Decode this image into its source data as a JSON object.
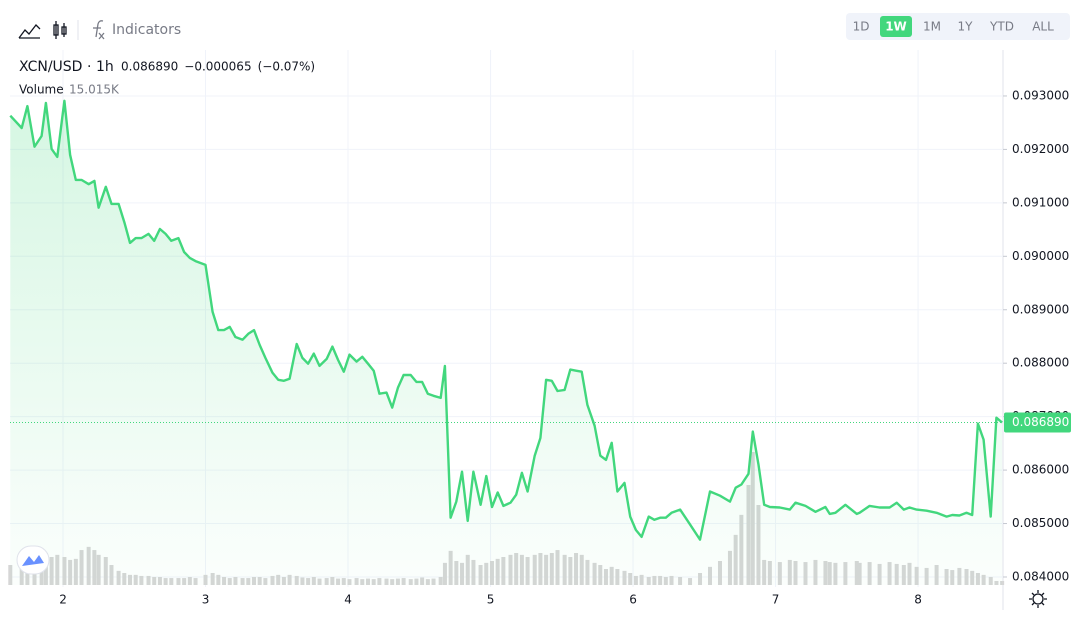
{
  "toolbar": {
    "indicators": "Indicators",
    "ranges": [
      "1D",
      "1W",
      "1M",
      "1Y",
      "YTD",
      "ALL"
    ],
    "active_range": 1
  },
  "chart_data": {
    "type": "line",
    "interval": "1h",
    "separator": "·",
    "last_price": {
      "value": 0.08689,
      "label": "0.086890"
    },
    "change": "−0.000065",
    "change_percent": "(−0.07%)",
    "volume_last": {
      "value": 15.015,
      "label": "15.015K"
    },
    "x": [
      1.63,
      1.71,
      1.75,
      1.8,
      1.85,
      1.88,
      1.92,
      1.96,
      2.01,
      2.05,
      2.09,
      2.13,
      2.18,
      2.22,
      2.25,
      2.3,
      2.34,
      2.39,
      2.43,
      2.47,
      2.51,
      2.55,
      2.6,
      2.64,
      2.68,
      2.72,
      2.76,
      2.81,
      2.85,
      2.89,
      2.93,
      3.0,
      3.05,
      3.09,
      3.13,
      3.17,
      3.21,
      3.26,
      3.3,
      3.34,
      3.38,
      3.42,
      3.47,
      3.51,
      3.55,
      3.59,
      3.64,
      3.68,
      3.72,
      3.76,
      3.8,
      3.85,
      3.89,
      3.93,
      3.97,
      4.01,
      4.06,
      4.1,
      4.14,
      4.18,
      4.22,
      4.27,
      4.31,
      4.35,
      4.39,
      4.44,
      4.48,
      4.52,
      4.56,
      4.6,
      4.65,
      4.68,
      4.72,
      4.76,
      4.8,
      4.84,
      4.88,
      4.93,
      4.97,
      5.01,
      5.05,
      5.09,
      5.14,
      5.18,
      5.22,
      5.26,
      5.31,
      5.35,
      5.39,
      5.43,
      5.47,
      5.52,
      5.56,
      5.6,
      5.64,
      5.68,
      5.73,
      5.77,
      5.81,
      5.85,
      5.89,
      5.94,
      5.98,
      6.02,
      6.06,
      6.11,
      6.15,
      6.19,
      6.23,
      6.27,
      6.33,
      6.4,
      6.47,
      6.54,
      6.61,
      6.68,
      6.72,
      6.76,
      6.81,
      6.84,
      6.88,
      6.92,
      6.96,
      7.03,
      7.1,
      7.14,
      7.21,
      7.28,
      7.35,
      7.38,
      7.42,
      7.49,
      7.57,
      7.59,
      7.66,
      7.73,
      7.8,
      7.85,
      7.9,
      7.94,
      7.99,
      8.06,
      8.13,
      8.2,
      8.24,
      8.29,
      8.34,
      8.38,
      8.42,
      8.46,
      8.51,
      8.55,
      8.59
    ],
    "series": [
      {
        "name": "XCN/USD",
        "color": "#42d77d",
        "values": [
          0.09263,
          0.0924,
          0.09281,
          0.09205,
          0.09225,
          0.09287,
          0.09201,
          0.09186,
          0.09291,
          0.0919,
          0.09143,
          0.09143,
          0.09135,
          0.09141,
          0.09091,
          0.0913,
          0.09098,
          0.09098,
          0.09064,
          0.09025,
          0.09034,
          0.09034,
          0.09042,
          0.09029,
          0.09051,
          0.09042,
          0.09029,
          0.09034,
          0.09008,
          0.08997,
          0.08991,
          0.08984,
          0.08896,
          0.08862,
          0.08862,
          0.08868,
          0.08849,
          0.08844,
          0.08855,
          0.08862,
          0.08834,
          0.0881,
          0.08782,
          0.08769,
          0.08767,
          0.08771,
          0.08836,
          0.0881,
          0.08799,
          0.08818,
          0.08795,
          0.08808,
          0.08831,
          0.08806,
          0.08784,
          0.08816,
          0.08803,
          0.08812,
          0.08799,
          0.08786,
          0.08743,
          0.08745,
          0.08717,
          0.08754,
          0.08778,
          0.08778,
          0.08765,
          0.08765,
          0.08743,
          0.08739,
          0.08735,
          0.08795,
          0.08511,
          0.08541,
          0.08597,
          0.08505,
          0.08597,
          0.08535,
          0.08589,
          0.08531,
          0.08558,
          0.08533,
          0.08539,
          0.08554,
          0.08595,
          0.0856,
          0.08627,
          0.0866,
          0.08769,
          0.08767,
          0.08748,
          0.0875,
          0.08788,
          0.08786,
          0.08784,
          0.08722,
          0.08683,
          0.08627,
          0.08619,
          0.08651,
          0.0856,
          0.08576,
          0.08513,
          0.08488,
          0.08475,
          0.08513,
          0.08507,
          0.08511,
          0.08511,
          0.0852,
          0.08526,
          0.08498,
          0.0847,
          0.0856,
          0.08552,
          0.08541,
          0.08567,
          0.08573,
          0.08593,
          0.08672,
          0.0861,
          0.08535,
          0.08531,
          0.0853,
          0.08526,
          0.08539,
          0.08533,
          0.08522,
          0.08531,
          0.08518,
          0.0852,
          0.08535,
          0.08518,
          0.0852,
          0.08533,
          0.0853,
          0.0853,
          0.08539,
          0.08526,
          0.0853,
          0.08526,
          0.08524,
          0.0852,
          0.08513,
          0.08516,
          0.08515,
          0.0852,
          0.08516,
          0.08687,
          0.08657,
          0.08513,
          0.08698,
          0.08689
        ]
      },
      {
        "name": "Volume",
        "color": "#d6d6d6",
        "axis": "volume",
        "values": [
          75,
          94,
          83,
          113,
          105,
          120,
          105,
          113,
          105,
          94,
          98,
          131,
          143,
          131,
          113,
          105,
          75,
          53,
          45,
          38,
          38,
          34,
          34,
          30,
          30,
          26,
          26,
          26,
          26,
          30,
          26,
          38,
          45,
          38,
          30,
          26,
          30,
          26,
          26,
          30,
          30,
          26,
          34,
          38,
          30,
          38,
          34,
          28,
          26,
          30,
          24,
          26,
          30,
          24,
          26,
          22,
          26,
          22,
          24,
          22,
          26,
          24,
          22,
          24,
          26,
          22,
          24,
          28,
          22,
          24,
          30,
          83,
          128,
          90,
          83,
          113,
          94,
          75,
          83,
          90,
          98,
          105,
          113,
          120,
          113,
          105,
          113,
          120,
          113,
          120,
          131,
          113,
          105,
          120,
          113,
          94,
          83,
          75,
          60,
          68,
          60,
          53,
          45,
          34,
          38,
          30,
          34,
          34,
          30,
          34,
          30,
          26,
          45,
          68,
          90,
          128,
          188,
          263,
          375,
          499,
          300,
          94,
          90,
          86,
          94,
          90,
          86,
          94,
          90,
          86,
          83,
          86,
          90,
          83,
          86,
          79,
          86,
          79,
          75,
          83,
          68,
          64,
          75,
          60,
          56,
          64,
          60,
          53,
          45,
          38,
          30,
          15,
          15.015
        ]
      }
    ],
    "xlim": [
      1.628,
      8.596
    ],
    "xticks": [
      2,
      3,
      4,
      5,
      6,
      7,
      8
    ],
    "ylim": [
      0.08385,
      0.09386
    ],
    "yticks": [
      {
        "value": 0.084,
        "label": "0.084000"
      },
      {
        "value": 0.085,
        "label": "0.085000"
      },
      {
        "value": 0.086,
        "label": "0.086000"
      },
      {
        "value": 0.087,
        "label": "0.087000"
      },
      {
        "value": 0.088,
        "label": "0.088000"
      },
      {
        "value": 0.089,
        "label": "0.089000"
      },
      {
        "value": 0.09,
        "label": "0.090000"
      },
      {
        "value": 0.091,
        "label": "0.091000"
      },
      {
        "value": 0.092,
        "label": "0.092000"
      },
      {
        "value": 0.093,
        "label": "0.093000"
      }
    ],
    "vlim": [
      0,
      750
    ],
    "grid": true
  }
}
